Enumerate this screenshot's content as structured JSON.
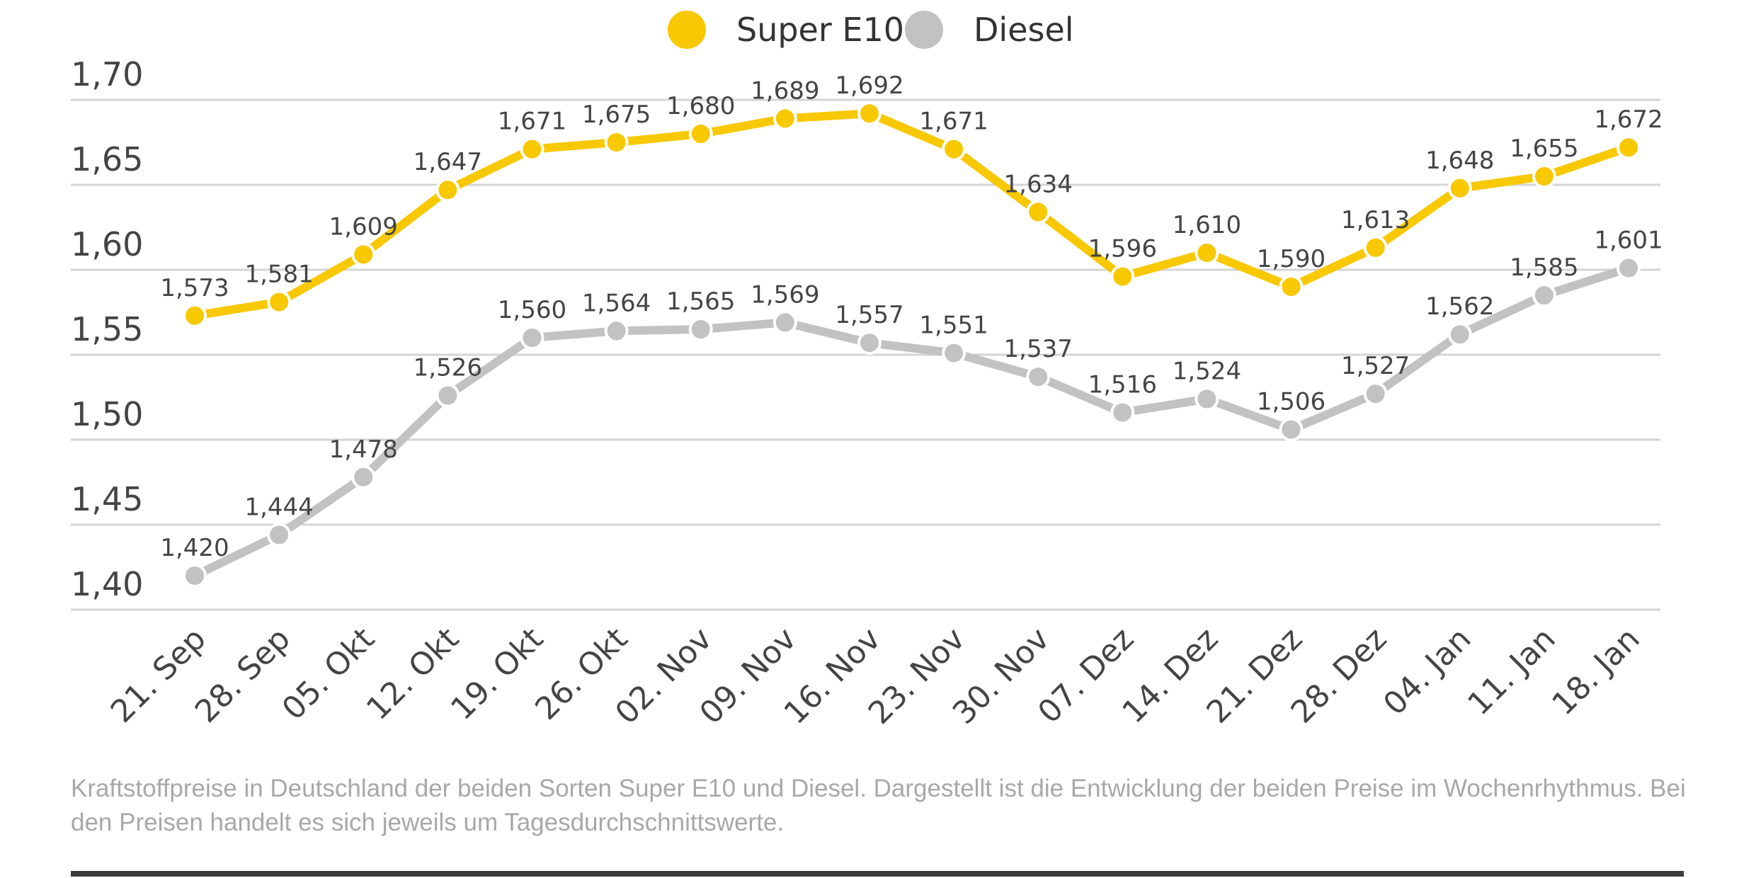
{
  "chart_data": {
    "type": "line",
    "title": "",
    "xlabel": "",
    "ylabel": "",
    "ylim": [
      1.4,
      1.7
    ],
    "yticks": [
      "1,40",
      "1,45",
      "1,50",
      "1,55",
      "1,60",
      "1,65",
      "1,70"
    ],
    "grid": true,
    "legend_placement": "top-center",
    "categories": [
      "21. Sep",
      "28. Sep",
      "05. Okt",
      "12. Okt",
      "19. Okt",
      "26. Okt",
      "02. Nov",
      "09. Nov",
      "16. Nov",
      "23. Nov",
      "30. Nov",
      "07. Dez",
      "14. Dez",
      "21. Dez",
      "28. Dez",
      "04. Jan",
      "11. Jan",
      "18. Jan"
    ],
    "series": [
      {
        "name": "Super E10",
        "color": "#f8c800",
        "values": [
          1.573,
          1.581,
          1.609,
          1.647,
          1.671,
          1.675,
          1.68,
          1.689,
          1.692,
          1.671,
          1.634,
          1.596,
          1.61,
          1.59,
          1.613,
          1.648,
          1.655,
          1.672
        ]
      },
      {
        "name": "Diesel",
        "color": "#c2c2c2",
        "values": [
          1.42,
          1.444,
          1.478,
          1.526,
          1.56,
          1.564,
          1.565,
          1.569,
          1.557,
          1.551,
          1.537,
          1.516,
          1.524,
          1.506,
          1.527,
          1.562,
          1.585,
          1.601
        ]
      }
    ],
    "caption": "Kraftstoffpreise in Deutschland der beiden Sorten Super E10 und Diesel. Dargestellt ist die Entwicklung der beiden Preise im Wochenrhythmus. Bei den Preisen handelt es sich jeweils um Tagesdurchschnittswerte."
  }
}
